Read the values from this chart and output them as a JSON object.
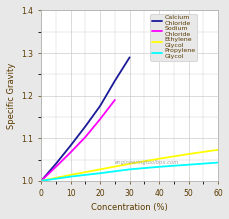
{
  "title": "",
  "xlabel": "Concentration (%)",
  "ylabel": "Specific Gravity",
  "xlim": [
    0,
    60
  ],
  "ylim": [
    1.0,
    1.4
  ],
  "xticks": [
    0,
    10,
    20,
    30,
    40,
    50,
    60
  ],
  "yticks": [
    1.0,
    1.1,
    1.2,
    1.3,
    1.4
  ],
  "watermark": "engineeringtoolbox.com",
  "plot_bg": "#ffffff",
  "fig_bg": "#e8e8e8",
  "grid_color": "#cccccc",
  "series": [
    {
      "label": "Calcium\nChloride",
      "color": "#1a1a99",
      "x": [
        0,
        5,
        10,
        15,
        20,
        25,
        30
      ],
      "y": [
        1.0,
        1.04,
        1.083,
        1.128,
        1.176,
        1.235,
        1.29
      ]
    },
    {
      "label": "Sodium\nChloride",
      "color": "#ff00ff",
      "x": [
        0,
        5,
        10,
        15,
        20,
        25
      ],
      "y": [
        1.0,
        1.033,
        1.067,
        1.103,
        1.145,
        1.19
      ]
    },
    {
      "label": "Ethylene\nGlycol",
      "color": "#ffff00",
      "x": [
        0,
        10,
        20,
        30,
        40,
        50,
        60,
        65
      ],
      "y": [
        1.0,
        1.014,
        1.027,
        1.04,
        1.052,
        1.063,
        1.073,
        1.073
      ]
    },
    {
      "label": "Propylene\nGlycol",
      "color": "#00ffff",
      "x": [
        0,
        10,
        20,
        30,
        40,
        50,
        60
      ],
      "y": [
        1.0,
        1.01,
        1.018,
        1.027,
        1.033,
        1.038,
        1.043
      ]
    }
  ],
  "label_color": "#5a3a00",
  "tick_color": "#5a3a00",
  "legend_fontsize": 4.5,
  "axis_fontsize": 6,
  "tick_fontsize": 5.5
}
